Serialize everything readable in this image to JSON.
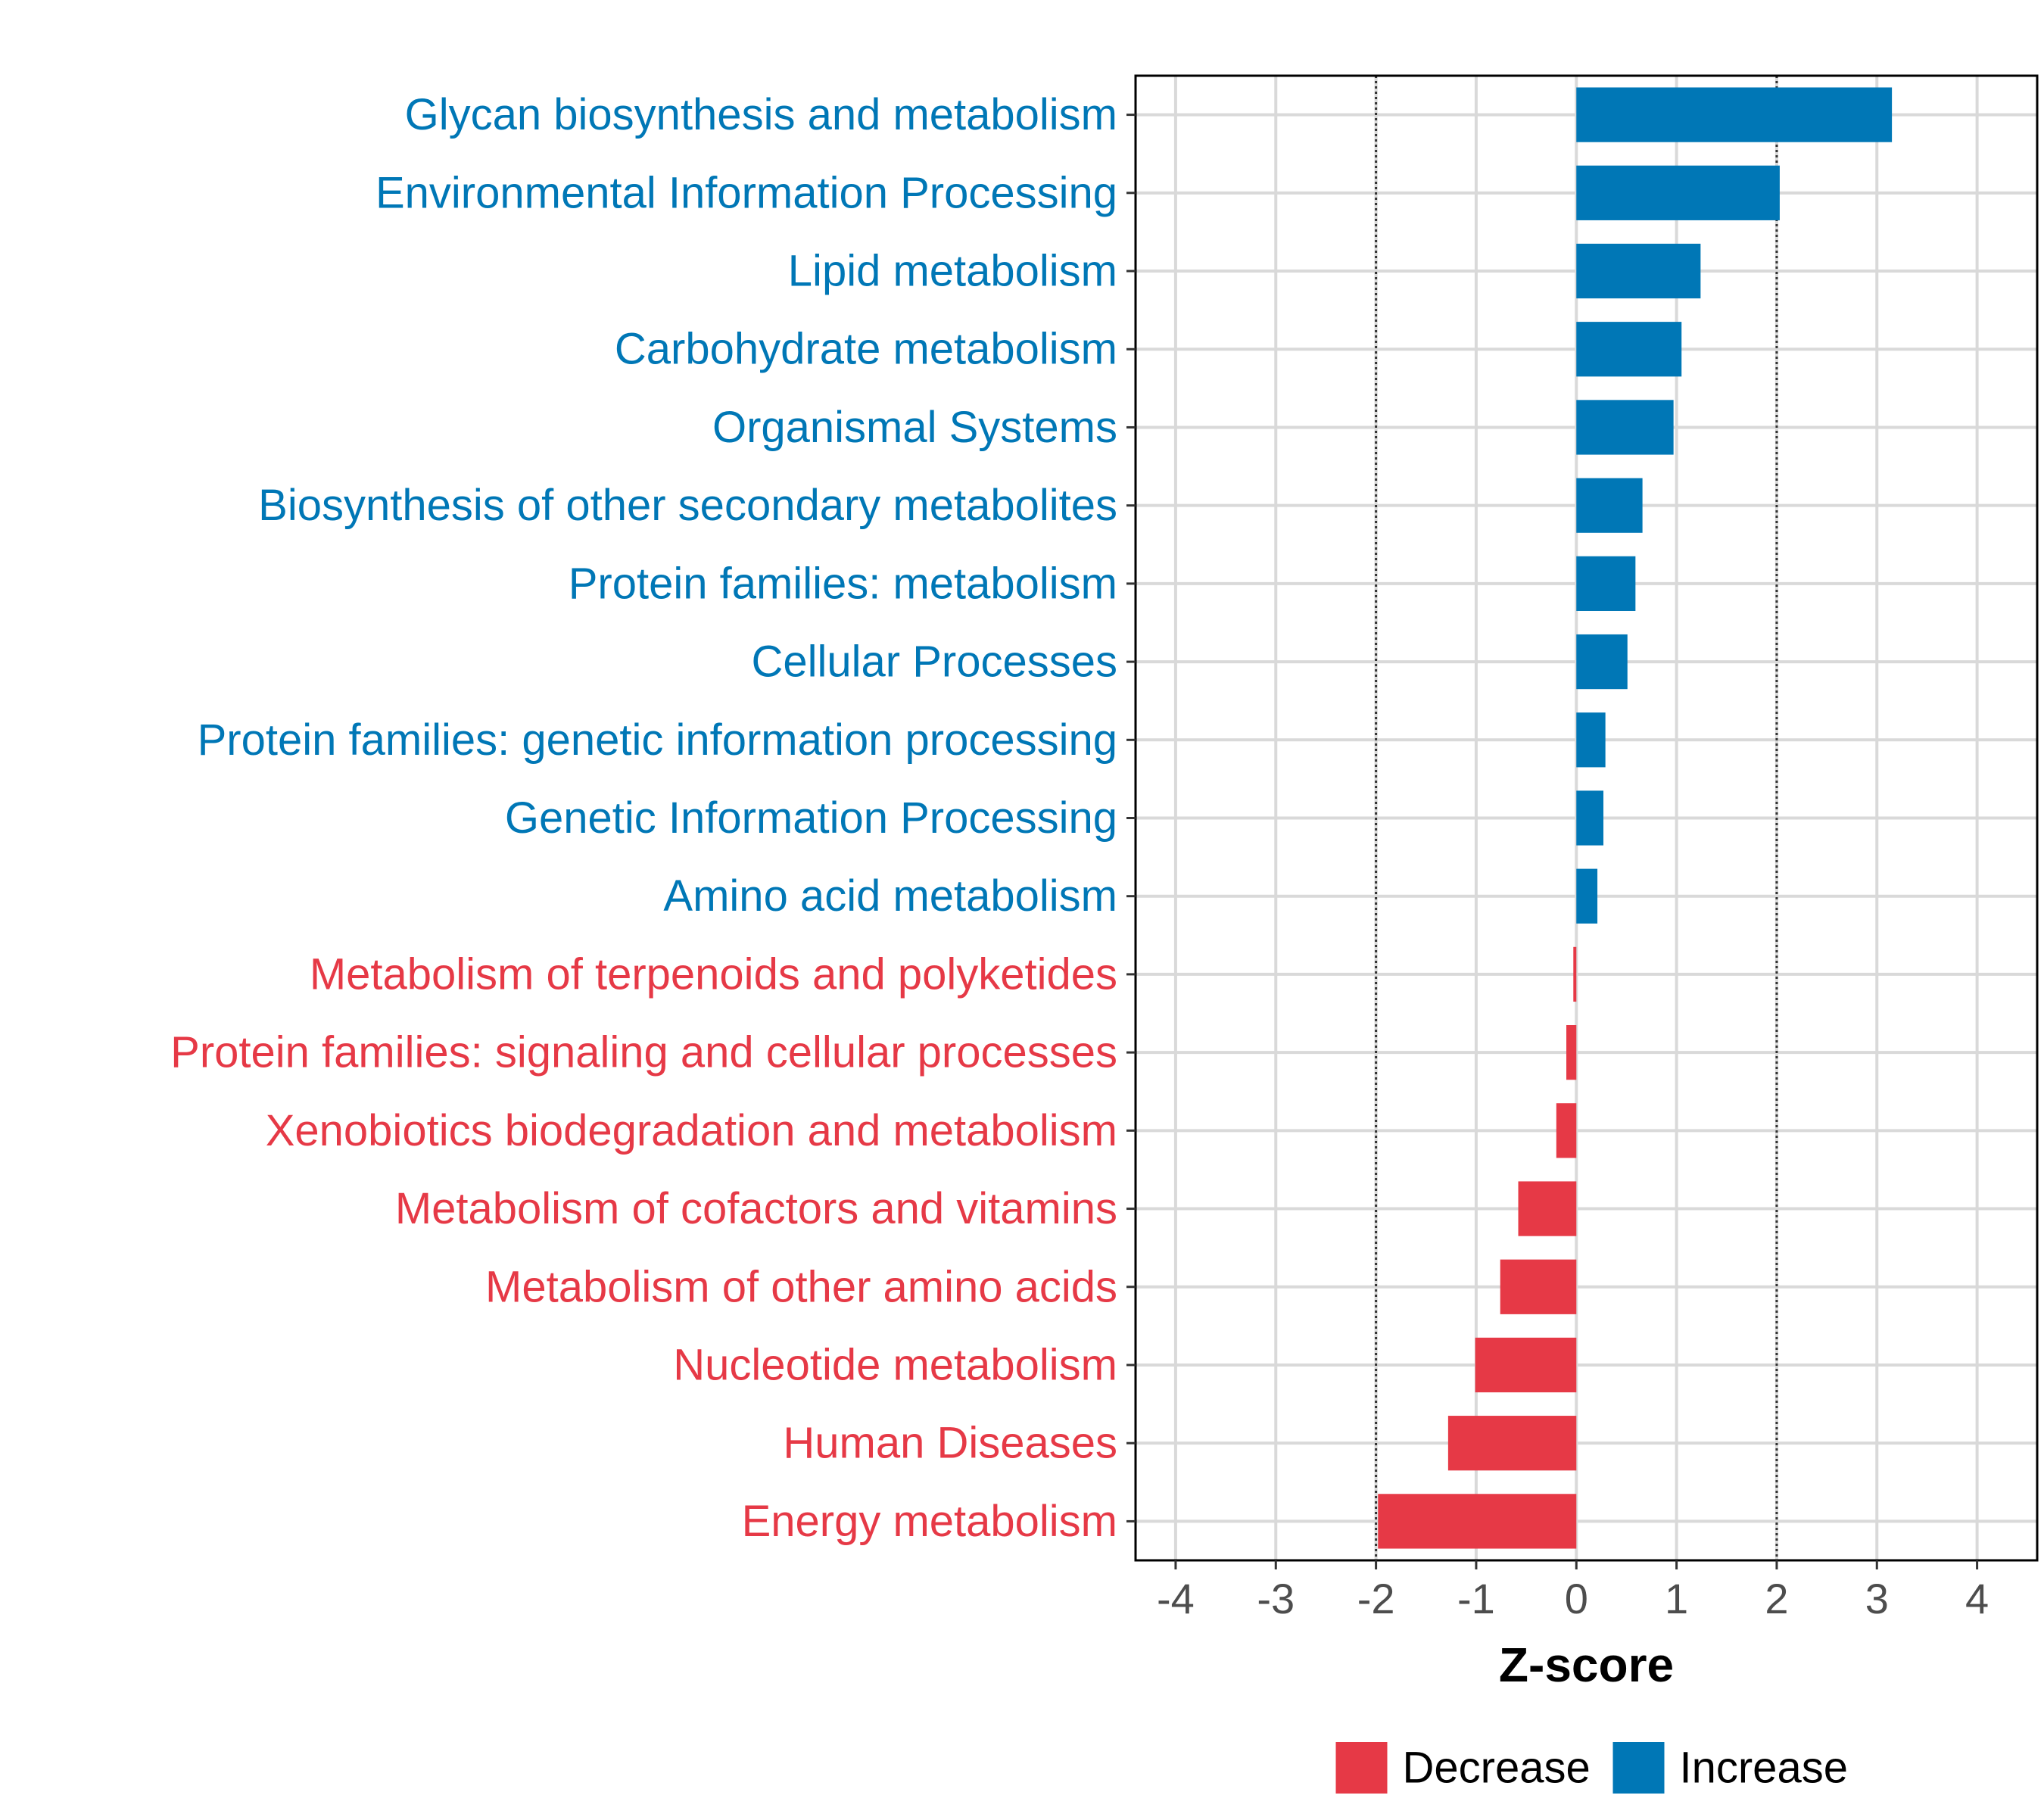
{
  "chart_data": {
    "type": "bar",
    "orientation": "horizontal",
    "title": "",
    "xlabel": "Z-score",
    "ylabel": "",
    "xlim": [
      -4.4,
      4.6
    ],
    "xticks": [
      -4,
      -3,
      -2,
      -1,
      0,
      1,
      2,
      3,
      4
    ],
    "xtick_labels": [
      "-4",
      "-3",
      "-2",
      "-1",
      "0",
      "1",
      "2",
      "3",
      "4"
    ],
    "grid": true,
    "reference_lines": [
      -2,
      2
    ],
    "legend_position": "bottom",
    "legend": [
      {
        "label": "Decrease",
        "color": "#E63946"
      },
      {
        "label": "Increase",
        "color": "#0077B6"
      }
    ],
    "categories": [
      "Glycan biosynthesis and metabolism",
      "Environmental Information Processing",
      "Lipid metabolism",
      "Carbohydrate metabolism",
      "Organismal Systems",
      "Biosynthesis of other secondary metabolites",
      "Protein families: metabolism",
      "Cellular Processes",
      "Protein families: genetic information processing",
      "Genetic Information Processing",
      "Amino acid metabolism",
      "Metabolism of terpenoids and polyketides",
      "Protein families: signaling and cellular processes",
      "Xenobiotics biodegradation and metabolism",
      "Metabolism of cofactors and vitamins",
      "Metabolism of other amino acids",
      "Nucleotide metabolism",
      "Human Diseases",
      "Energy metabolism"
    ],
    "values": [
      3.15,
      2.03,
      1.24,
      1.05,
      0.97,
      0.66,
      0.59,
      0.51,
      0.29,
      0.27,
      0.21,
      -0.03,
      -0.1,
      -0.2,
      -0.58,
      -0.76,
      -1.01,
      -1.28,
      -1.98
    ],
    "groups": [
      "Increase",
      "Increase",
      "Increase",
      "Increase",
      "Increase",
      "Increase",
      "Increase",
      "Increase",
      "Increase",
      "Increase",
      "Increase",
      "Decrease",
      "Decrease",
      "Decrease",
      "Decrease",
      "Decrease",
      "Decrease",
      "Decrease",
      "Decrease"
    ]
  }
}
